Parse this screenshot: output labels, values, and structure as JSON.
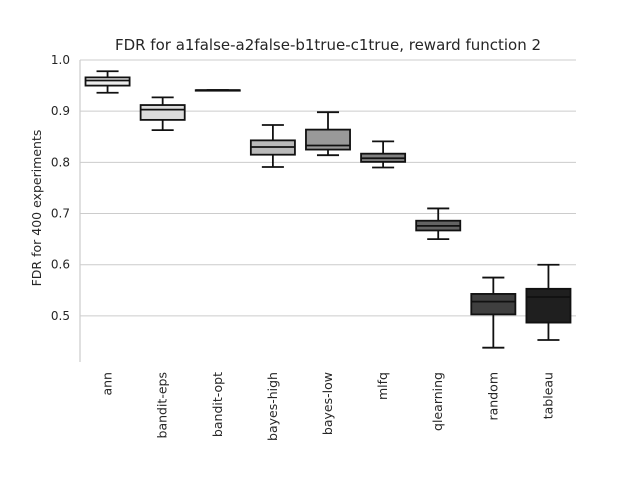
{
  "chart_data": {
    "type": "box",
    "title": "FDR for a1false-a2false-b1true-c1true, reward function 2",
    "ylabel": "FDR for 400 experiments",
    "xlabel": "",
    "ylim": [
      0.41,
      1.0
    ],
    "yticks": [
      0.5,
      0.6,
      0.7,
      0.8,
      0.9,
      1.0
    ],
    "grid": "horizontal",
    "categories": [
      "ann",
      "bandit-eps",
      "bandit-opt",
      "bayes-high",
      "bayes-low",
      "mlfq",
      "qlearning",
      "random",
      "tableau"
    ],
    "boxes": [
      {
        "name": "ann",
        "whislo": 0.936,
        "q1": 0.95,
        "med": 0.96,
        "q3": 0.966,
        "whishi": 0.978,
        "color": "#ececec"
      },
      {
        "name": "bandit-eps",
        "whislo": 0.863,
        "q1": 0.883,
        "med": 0.903,
        "q3": 0.912,
        "whishi": 0.927,
        "color": "#dcdcdc"
      },
      {
        "name": "bandit-opt",
        "whislo": 0.941,
        "q1": 0.941,
        "med": 0.941,
        "q3": 0.941,
        "whishi": 0.941,
        "color": "#cfcfcf"
      },
      {
        "name": "bayes-high",
        "whislo": 0.791,
        "q1": 0.815,
        "med": 0.83,
        "q3": 0.843,
        "whishi": 0.873,
        "color": "#b9b9b9"
      },
      {
        "name": "bayes-low",
        "whislo": 0.814,
        "q1": 0.825,
        "med": 0.833,
        "q3": 0.864,
        "whishi": 0.898,
        "color": "#999999"
      },
      {
        "name": "mlfq",
        "whislo": 0.79,
        "q1": 0.801,
        "med": 0.808,
        "q3": 0.817,
        "whishi": 0.841,
        "color": "#808080"
      },
      {
        "name": "qlearning",
        "whislo": 0.65,
        "q1": 0.667,
        "med": 0.676,
        "q3": 0.686,
        "whishi": 0.71,
        "color": "#636363"
      },
      {
        "name": "random",
        "whislo": 0.438,
        "q1": 0.503,
        "med": 0.528,
        "q3": 0.543,
        "whishi": 0.575,
        "color": "#3f3f3f"
      },
      {
        "name": "tableau",
        "whislo": 0.453,
        "q1": 0.487,
        "med": 0.537,
        "q3": 0.553,
        "whishi": 0.6,
        "color": "#1f1f1f"
      }
    ]
  }
}
